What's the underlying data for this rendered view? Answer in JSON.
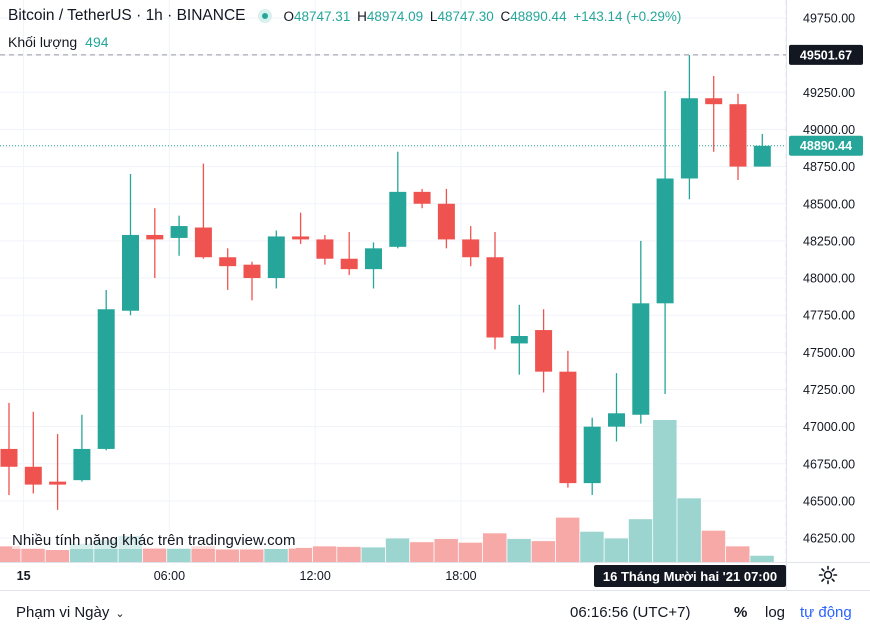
{
  "header": {
    "symbol": "Bitcoin / TetherUS",
    "interval": "1h",
    "exchange": "BINANCE",
    "open_label": "O",
    "open": "48747.31",
    "high_label": "H",
    "high": "48974.09",
    "low_label": "L",
    "low": "48747.30",
    "close_label": "C",
    "close": "48890.44",
    "change": "+143.14 (+0.29%)"
  },
  "volume_label": {
    "label": "Khối lượng",
    "value": "494"
  },
  "promo": "Nhiều tính năng khác trên tradingview.com",
  "bottom": {
    "range": "Phạm vi Ngày",
    "clock": "06:16:56 (UTC+7)",
    "percent": "%",
    "log": "log",
    "auto": "tự động"
  },
  "colors": {
    "up": "#26a69a",
    "down": "#ef5350",
    "volume_up": "#9cd5cf",
    "volume_down": "#f7a9a7"
  },
  "chart_data": {
    "type": "candlestick",
    "y_ticks": [
      "49750.00",
      "49500.00",
      "49250.00",
      "49000.00",
      "48750.00",
      "48500.00",
      "48250.00",
      "48000.00",
      "47750.00",
      "47500.00",
      "47250.00",
      "47000.00",
      "46750.00",
      "46500.00",
      "46250.00"
    ],
    "x_ticks": [
      {
        "label": "15",
        "bar": 0.6
      },
      {
        "label": "06:00",
        "bar": 6.6
      },
      {
        "label": "12:00",
        "bar": 12.6
      },
      {
        "label": "18:00",
        "bar": 18.6
      }
    ],
    "price_labels": [
      {
        "value": "49501.67",
        "style": "crosshair"
      },
      {
        "value": "48890.44",
        "style": "last"
      }
    ],
    "crosshair_price": 49501.67,
    "last_price": 48890.44,
    "crosshair_time": "16 Tháng Mười hai '21   07:00",
    "candles": [
      {
        "o": 46850,
        "h": 47160,
        "l": 46540,
        "c": 46730,
        "vol": 0.3
      },
      {
        "o": 46730,
        "h": 47100,
        "l": 46550,
        "c": 46610,
        "vol": 0.26
      },
      {
        "o": 46630,
        "h": 46950,
        "l": 46440,
        "c": 46610,
        "vol": 0.23
      },
      {
        "o": 46640,
        "h": 47080,
        "l": 46630,
        "c": 46850,
        "vol": 0.35
      },
      {
        "o": 46850,
        "h": 47920,
        "l": 46840,
        "c": 47790,
        "vol": 0.42
      },
      {
        "o": 47780,
        "h": 48700,
        "l": 47750,
        "c": 48290,
        "vol": 0.5
      },
      {
        "o": 48290,
        "h": 48470,
        "l": 48000,
        "c": 48260,
        "vol": 0.27
      },
      {
        "o": 48270,
        "h": 48420,
        "l": 48150,
        "c": 48350,
        "vol": 0.26
      },
      {
        "o": 48340,
        "h": 48770,
        "l": 48130,
        "c": 48140,
        "vol": 0.3
      },
      {
        "o": 48140,
        "h": 48200,
        "l": 47920,
        "c": 48080,
        "vol": 0.24
      },
      {
        "o": 48090,
        "h": 48110,
        "l": 47850,
        "c": 48000,
        "vol": 0.24
      },
      {
        "o": 48000,
        "h": 48320,
        "l": 47930,
        "c": 48280,
        "vol": 0.25
      },
      {
        "o": 48280,
        "h": 48440,
        "l": 48230,
        "c": 48260,
        "vol": 0.27
      },
      {
        "o": 48260,
        "h": 48290,
        "l": 48090,
        "c": 48130,
        "vol": 0.3
      },
      {
        "o": 48130,
        "h": 48310,
        "l": 48020,
        "c": 48060,
        "vol": 0.29
      },
      {
        "o": 48060,
        "h": 48240,
        "l": 47930,
        "c": 48200,
        "vol": 0.28
      },
      {
        "o": 48210,
        "h": 48850,
        "l": 48200,
        "c": 48580,
        "vol": 0.45
      },
      {
        "o": 48580,
        "h": 48600,
        "l": 48470,
        "c": 48500,
        "vol": 0.38
      },
      {
        "o": 48500,
        "h": 48600,
        "l": 48200,
        "c": 48260,
        "vol": 0.44
      },
      {
        "o": 48260,
        "h": 48350,
        "l": 48080,
        "c": 48140,
        "vol": 0.37
      },
      {
        "o": 48140,
        "h": 48310,
        "l": 47520,
        "c": 47600,
        "vol": 0.55
      },
      {
        "o": 47560,
        "h": 47820,
        "l": 47350,
        "c": 47610,
        "vol": 0.44
      },
      {
        "o": 47650,
        "h": 47790,
        "l": 47230,
        "c": 47370,
        "vol": 0.4
      },
      {
        "o": 47370,
        "h": 47510,
        "l": 46590,
        "c": 46620,
        "vol": 0.85
      },
      {
        "o": 46620,
        "h": 47060,
        "l": 46540,
        "c": 47000,
        "vol": 0.58
      },
      {
        "o": 47000,
        "h": 47360,
        "l": 46900,
        "c": 47090,
        "vol": 0.45
      },
      {
        "o": 47080,
        "h": 48250,
        "l": 47020,
        "c": 47830,
        "vol": 0.82
      },
      {
        "o": 47830,
        "h": 49260,
        "l": 47220,
        "c": 48670,
        "vol": 2.72
      },
      {
        "o": 48670,
        "h": 49500,
        "l": 48530,
        "c": 49210,
        "vol": 1.22
      },
      {
        "o": 49210,
        "h": 49360,
        "l": 48850,
        "c": 49170,
        "vol": 0.6
      },
      {
        "o": 49170,
        "h": 49240,
        "l": 48660,
        "c": 48750,
        "vol": 0.3
      },
      {
        "o": 48750,
        "h": 48970,
        "l": 48750,
        "c": 48890,
        "vol": 0.12
      }
    ]
  }
}
